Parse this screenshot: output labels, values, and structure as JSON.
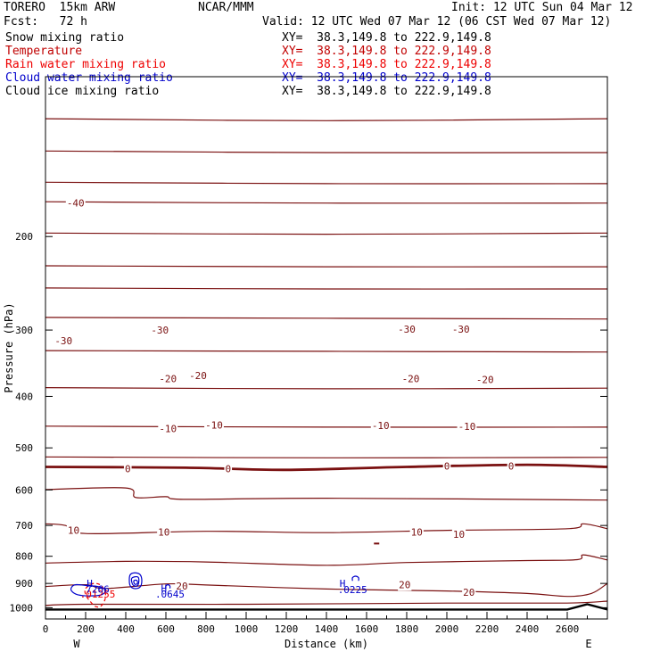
{
  "header": {
    "model": "TORERO  15km ARW",
    "center": "NCAR/MMM",
    "init": "Init: 12 UTC Sun 04 Mar 12",
    "fcst": "Fcst:   72 h",
    "valid": "Valid: 12 UTC Wed 07 Mar 12 (06 CST Wed 07 Mar 12)"
  },
  "fields": [
    {
      "name": "Snow mixing ratio",
      "xy": "XY=  38.3,149.8 to 222.9,149.8",
      "color": "#000000"
    },
    {
      "name": "Temperature",
      "xy": "XY=  38.3,149.8 to 222.9,149.8",
      "color": "#c00000"
    },
    {
      "name": "Rain water mixing ratio",
      "xy": "XY=  38.3,149.8 to 222.9,149.8",
      "color": "#ee0000"
    },
    {
      "name": "Cloud water mixing ratio",
      "xy": "XY=  38.3,149.8 to 222.9,149.8",
      "color": "#0000cc"
    },
    {
      "name": "Cloud ice mixing ratio",
      "xy": "XY=  38.3,149.8 to 222.9,149.8",
      "color": "#000000"
    }
  ],
  "chart_data": {
    "type": "line",
    "xlabel": "Distance (km)",
    "ylabel": "Pressure (hPa)",
    "x_start_label": "W",
    "x_end_label": "E",
    "xlim": [
      0,
      2800
    ],
    "ylim": [
      1050,
      100
    ],
    "y_scale": "log",
    "xticks": [
      0,
      200,
      400,
      600,
      800,
      1000,
      1200,
      1400,
      1600,
      1800,
      2000,
      2200,
      2400,
      2600
    ],
    "yticks": [
      200,
      300,
      400,
      500,
      600,
      700,
      800,
      900,
      1000
    ],
    "temperature_color": "#7a1010",
    "terrain_color": "#000000",
    "isotherms": [
      {
        "points": [
          [
            0,
            120
          ],
          [
            1400,
            121
          ],
          [
            2800,
            120
          ]
        ]
      },
      {
        "points": [
          [
            0,
            138
          ],
          [
            1400,
            139
          ],
          [
            2800,
            139
          ]
        ]
      },
      {
        "points": [
          [
            0,
            158
          ],
          [
            1400,
            159
          ],
          [
            2800,
            159
          ]
        ]
      },
      {
        "points": [
          [
            0,
            172
          ],
          [
            1400,
            173
          ],
          [
            2800,
            173
          ]
        ]
      },
      {
        "points": [
          [
            0,
            197
          ],
          [
            1400,
            198
          ],
          [
            2800,
            197
          ]
        ]
      },
      {
        "points": [
          [
            0,
            227
          ],
          [
            1400,
            228
          ],
          [
            2800,
            228
          ]
        ]
      },
      {
        "points": [
          [
            0,
            250
          ],
          [
            1400,
            251
          ],
          [
            2800,
            251
          ]
        ]
      },
      {
        "points": [
          [
            0,
            284
          ],
          [
            1400,
            285
          ],
          [
            2800,
            286
          ]
        ]
      },
      {
        "points": [
          [
            0,
            328
          ],
          [
            1400,
            329
          ],
          [
            2800,
            330
          ]
        ]
      },
      {
        "points": [
          [
            0,
            385
          ],
          [
            1400,
            387
          ],
          [
            2800,
            386
          ]
        ]
      },
      {
        "points": [
          [
            0,
            455
          ],
          [
            1400,
            457
          ],
          [
            2800,
            457
          ]
        ]
      },
      {
        "points": [
          [
            0,
            520
          ],
          [
            1400,
            522
          ],
          [
            2800,
            521
          ]
        ]
      },
      {
        "points": [
          [
            0,
            599
          ],
          [
            400,
            595
          ],
          [
            450,
            620
          ],
          [
            600,
            618
          ],
          [
            700,
            625
          ],
          [
            1400,
            622
          ],
          [
            2800,
            627
          ]
        ]
      },
      {
        "points": [
          [
            0,
            695
          ],
          [
            100,
            700
          ],
          [
            200,
            725
          ],
          [
            800,
            718
          ],
          [
            1400,
            722
          ],
          [
            2000,
            715
          ],
          [
            2600,
            710
          ],
          [
            2680,
            695
          ],
          [
            2800,
            710
          ]
        ]
      },
      {
        "points": [
          [
            0,
            824
          ],
          [
            400,
            818
          ],
          [
            800,
            820
          ],
          [
            1400,
            832
          ],
          [
            1800,
            822
          ],
          [
            2400,
            815
          ],
          [
            2650,
            812
          ],
          [
            2680,
            795
          ],
          [
            2800,
            813
          ]
        ]
      },
      {
        "points": [
          [
            0,
            912
          ],
          [
            200,
            905
          ],
          [
            300,
            920
          ],
          [
            600,
            902
          ],
          [
            800,
            906
          ],
          [
            1400,
            922
          ],
          [
            2000,
            930
          ],
          [
            2400,
            940
          ],
          [
            2600,
            952
          ],
          [
            2720,
            940
          ],
          [
            2800,
            900
          ]
        ]
      },
      {
        "points": [
          [
            0,
            990
          ],
          [
            200,
            985
          ],
          [
            1000,
            985
          ],
          [
            2000,
            980
          ],
          [
            2600,
            980
          ],
          [
            2800,
            972
          ]
        ]
      }
    ],
    "freezing_level": {
      "points": [
        [
          0,
          543
        ],
        [
          700,
          545
        ],
        [
          1200,
          550
        ],
        [
          1800,
          543
        ],
        [
          2400,
          538
        ],
        [
          2800,
          543
        ]
      ]
    },
    "terrain": {
      "points": [
        [
          0,
          1008
        ],
        [
          1400,
          1008
        ],
        [
          2600,
          1008
        ],
        [
          2700,
          985
        ],
        [
          2800,
          1008
        ]
      ]
    },
    "isotherm_labels": [
      {
        "label": "-40",
        "x": 150,
        "p": 173
      },
      {
        "label": "-30",
        "x": 90,
        "p": 314
      },
      {
        "label": "-30",
        "x": 570,
        "p": 300
      },
      {
        "label": "-30",
        "x": 1800,
        "p": 299
      },
      {
        "label": "-30",
        "x": 2070,
        "p": 299
      },
      {
        "label": "-20",
        "x": 610,
        "p": 370
      },
      {
        "label": "-20",
        "x": 760,
        "p": 365
      },
      {
        "label": "-20",
        "x": 1820,
        "p": 370
      },
      {
        "label": "-20",
        "x": 2190,
        "p": 372
      },
      {
        "label": "-10",
        "x": 610,
        "p": 460
      },
      {
        "label": "-10",
        "x": 840,
        "p": 453
      },
      {
        "label": "-10",
        "x": 1670,
        "p": 454
      },
      {
        "label": "-10",
        "x": 2100,
        "p": 455
      },
      {
        "label": "0",
        "x": 410,
        "p": 547
      },
      {
        "label": "0",
        "x": 910,
        "p": 547
      },
      {
        "label": "0",
        "x": 2000,
        "p": 541
      },
      {
        "label": "0",
        "x": 2320,
        "p": 541
      },
      {
        "label": "10",
        "x": 140,
        "p": 715
      },
      {
        "label": "10",
        "x": 590,
        "p": 720
      },
      {
        "label": "10",
        "x": 1850,
        "p": 720
      },
      {
        "label": "10",
        "x": 2060,
        "p": 727
      },
      {
        "label": "20",
        "x": 680,
        "p": 910
      },
      {
        "label": "20",
        "x": 1790,
        "p": 904
      },
      {
        "label": "20",
        "x": 2110,
        "p": 935
      }
    ],
    "cloud_water": {
      "color": "#0000cc",
      "features": [
        {
          "type": "closed",
          "points": [
            [
              130,
              915
            ],
            [
              150,
              905
            ],
            [
              200,
              908
            ],
            [
              260,
              912
            ],
            [
              300,
              925
            ],
            [
              280,
              945
            ],
            [
              220,
              950
            ],
            [
              160,
              945
            ],
            [
              130,
              930
            ]
          ]
        },
        {
          "type": "closed",
          "points": [
            [
              420,
              870
            ],
            [
              440,
              860
            ],
            [
              470,
              865
            ],
            [
              480,
              890
            ],
            [
              470,
              915
            ],
            [
              440,
              920
            ],
            [
              420,
              905
            ]
          ]
        },
        {
          "type": "closed",
          "points": [
            [
              430,
              880
            ],
            [
              460,
              875
            ],
            [
              465,
              895
            ],
            [
              455,
              910
            ],
            [
              435,
              905
            ]
          ]
        },
        {
          "type": "closed",
          "points": [
            [
              440,
              890
            ],
            [
              455,
              888
            ],
            [
              458,
              900
            ],
            [
              445,
              903
            ]
          ]
        },
        {
          "type": "open",
          "points": [
            [
              600,
              920
            ],
            [
              600,
              910
            ],
            [
              610,
              905
            ],
            [
              620,
              910
            ],
            [
              620,
              920
            ]
          ]
        },
        {
          "type": "open",
          "points": [
            [
              1530,
              890
            ],
            [
              1530,
              878
            ],
            [
              1545,
              872
            ],
            [
              1560,
              878
            ],
            [
              1560,
              890
            ]
          ]
        }
      ],
      "markers": [
        {
          "label": "H",
          "x": 220,
          "p": 900
        },
        {
          "label": "H",
          "x": 590,
          "p": 918
        },
        {
          "label": "H",
          "x": 1480,
          "p": 900
        }
      ],
      "values": [
        {
          "label": "7266",
          "x": 260,
          "p": 922
        },
        {
          "label": ".0645",
          "x": 620,
          "p": 943
        },
        {
          "label": ".0225",
          "x": 1530,
          "p": 925
        }
      ]
    },
    "rain_water": {
      "color": "#ee0000",
      "features": [
        {
          "type": "closed",
          "points": [
            [
              200,
              920
            ],
            [
              240,
              900
            ],
            [
              280,
              910
            ],
            [
              300,
              950
            ],
            [
              280,
              990
            ],
            [
              250,
              995
            ],
            [
              220,
              970
            ],
            [
              200,
              945
            ]
          ]
        }
      ],
      "values": [
        {
          "label": ".01255",
          "x": 260,
          "p": 942
        }
      ]
    },
    "stray_marks": [
      {
        "x": 1650,
        "p": 757
      }
    ]
  }
}
